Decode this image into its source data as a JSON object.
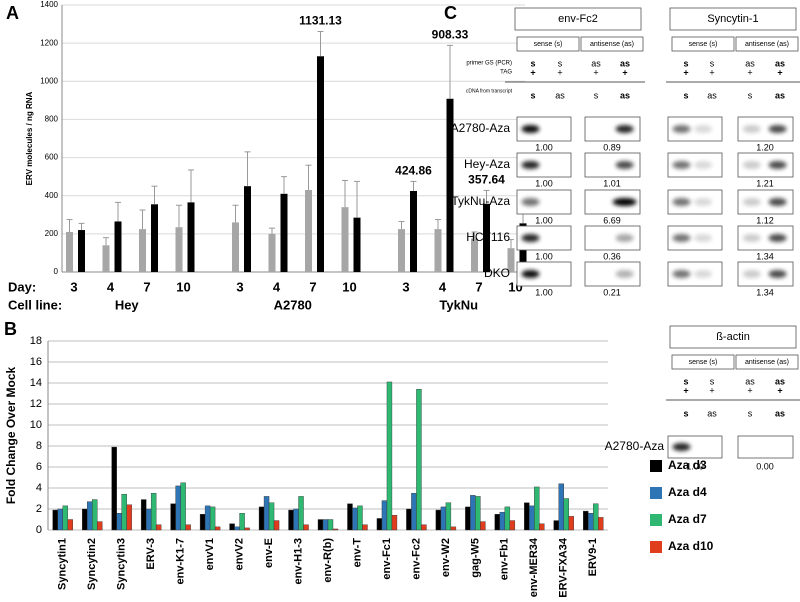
{
  "chart_data": [
    {
      "type": "bar",
      "panel_label": "A",
      "y_label": "ERV molecules / ng RNA",
      "categories": [
        "3",
        "4",
        "7",
        "10",
        "3",
        "4",
        "7",
        "10",
        "3",
        "4",
        "7",
        "10"
      ],
      "groups": [
        "Hey",
        "A2780",
        "TykNu"
      ],
      "row_labels": [
        "Day:",
        "Cell line:"
      ],
      "ylim": [
        0,
        1400
      ],
      "yticks": [
        0,
        200,
        400,
        600,
        800,
        1000,
        1200,
        1400
      ],
      "grid": true,
      "series": [
        {
          "color": "#a6a6a6",
          "values": [
            210,
            140,
            225,
            235,
            260,
            200,
            430,
            340,
            225,
            225,
            175,
            125
          ],
          "errors": [
            65,
            40,
            100,
            115,
            90,
            30,
            130,
            140,
            40,
            50,
            35,
            45
          ]
        },
        {
          "color": "#000000",
          "values": [
            220,
            265,
            355,
            365,
            450,
            410,
            1131.13,
            285,
            424.86,
            908.33,
            357.64,
            255
          ],
          "errors": [
            35,
            100,
            95,
            170,
            180,
            90,
            130,
            190,
            50,
            280,
            70,
            60
          ],
          "value_labels": [
            null,
            null,
            null,
            null,
            null,
            null,
            "1131.13",
            null,
            "424.86",
            "908.33",
            "357.64",
            null
          ]
        }
      ]
    },
    {
      "type": "bar",
      "panel_label": "B",
      "y_label": "Fold Change Over Mock",
      "categories": [
        "Syncytin1",
        "Syncytin2",
        "Syncytin3",
        "ERV-3",
        "env-K1-7",
        "envV1",
        "envV2",
        "env-E",
        "env-H1-3",
        "env-R(b)",
        "env-T",
        "env-Fc1",
        "env-Fc2",
        "env-W2",
        "gag-W5",
        "env-Fb1",
        "env-MER34",
        "ERV-FXA34",
        "ERV9-1"
      ],
      "ylim": [
        0,
        18
      ],
      "yticks": [
        0,
        2,
        4,
        6,
        8,
        10,
        12,
        14,
        16,
        18
      ],
      "grid": true,
      "legend": "right",
      "series": [
        {
          "name": "Aza d3",
          "color": "#000000",
          "values": [
            1.9,
            2.0,
            7.9,
            2.9,
            2.5,
            1.5,
            0.6,
            2.2,
            1.9,
            1.0,
            2.5,
            1.1,
            2.0,
            1.9,
            2.2,
            1.5,
            2.6,
            0.9,
            1.8
          ]
        },
        {
          "name": "Aza d4",
          "color": "#2e75b6",
          "values": [
            2.0,
            2.7,
            1.6,
            2.0,
            4.2,
            2.3,
            0.3,
            3.2,
            2.0,
            1.0,
            2.1,
            2.8,
            3.5,
            2.2,
            3.3,
            1.7,
            2.3,
            4.4,
            1.6
          ]
        },
        {
          "name": "Aza d7",
          "color": "#2eb872",
          "values": [
            2.3,
            2.9,
            3.4,
            3.5,
            4.5,
            2.2,
            1.6,
            2.6,
            3.2,
            1.0,
            2.3,
            14.1,
            13.4,
            2.6,
            3.2,
            2.2,
            4.1,
            3.0,
            2.5
          ]
        },
        {
          "name": "Aza d10",
          "color": "#e03c1e",
          "values": [
            1.0,
            0.8,
            2.4,
            0.5,
            0.5,
            0.3,
            0.2,
            0.9,
            0.5,
            0.1,
            0.5,
            1.4,
            0.5,
            0.3,
            0.8,
            0.9,
            0.6,
            1.3,
            1.2
          ]
        }
      ]
    }
  ],
  "panel_c": {
    "label": "C",
    "primer_label": "primer GS (PCR)",
    "tag_label": "TAG",
    "cdna_label": "cDNA from transcript",
    "blots": [
      {
        "title": "env-Fc2",
        "sense": "sense (s)",
        "antisense": "antisense (as)",
        "primer": [
          "s",
          "s",
          "as",
          "as"
        ],
        "tag": [
          "+",
          "+",
          "+",
          "+"
        ],
        "cdna": [
          "s",
          "as",
          "s",
          "as"
        ]
      },
      {
        "title": "Syncytin-1",
        "sense": "sense (s)",
        "antisense": "antisense (as)",
        "primer": [
          "s",
          "s",
          "as",
          "as"
        ],
        "tag": [
          "+",
          "+",
          "+",
          "+"
        ],
        "cdna": [
          "s",
          "as",
          "s",
          "as"
        ]
      }
    ],
    "rows": [
      {
        "label": "A2780-Aza",
        "env_fc2": [
          "1.00",
          "0.89"
        ],
        "syncytin_1": [
          "1.20"
        ]
      },
      {
        "label": "Hey-Aza",
        "env_fc2": [
          "1.00",
          "1.01"
        ],
        "syncytin_1": [
          "1.21"
        ]
      },
      {
        "label": "TykNu-Aza",
        "env_fc2": [
          "1.00",
          "6.69"
        ],
        "syncytin_1": [
          "1.12"
        ]
      },
      {
        "label": "HCT116",
        "env_fc2": [
          "1.00",
          "0.36"
        ],
        "syncytin_1": [
          "1.34"
        ]
      },
      {
        "label": "DKO",
        "env_fc2": [
          "1.00",
          "0.21"
        ],
        "syncytin_1": [
          "1.34"
        ]
      }
    ],
    "actin": {
      "title": "ß-actin",
      "sense": "sense (s)",
      "antisense": "antisense (as)",
      "primer": [
        "s",
        "s",
        "as",
        "as"
      ],
      "tag": [
        "+",
        "+",
        "+",
        "+"
      ],
      "cdna": [
        "s",
        "as",
        "s",
        "as"
      ],
      "rows": [
        {
          "label": "A2780-Aza",
          "values": [
            "1.00",
            "0.00"
          ]
        }
      ]
    }
  }
}
